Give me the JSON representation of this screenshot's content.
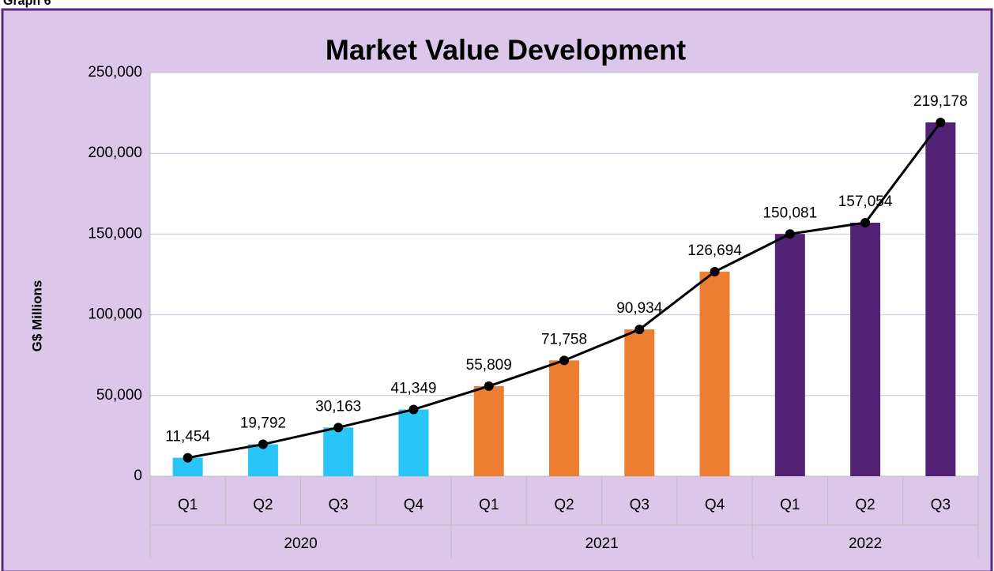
{
  "caption": "Graph 6",
  "chart_data": {
    "type": "bar-line",
    "title": "Market Value Development",
    "ylabel": "G$ Millions",
    "groups": [
      {
        "name": "2020",
        "color": "#29c5f6",
        "categories": [
          "Q1",
          "Q2",
          "Q3",
          "Q4"
        ],
        "values": [
          11454,
          19792,
          30163,
          41349
        ],
        "value_labels": [
          "11,454",
          "19,792",
          "30,163",
          "41,349"
        ]
      },
      {
        "name": "2021",
        "color": "#ed7d31",
        "categories": [
          "Q1",
          "Q2",
          "Q3",
          "Q4"
        ],
        "values": [
          55809,
          71758,
          90934,
          126694
        ],
        "value_labels": [
          "55,809",
          "71,758",
          "90,934",
          "126,694"
        ]
      },
      {
        "name": "2022",
        "color": "#522274",
        "categories": [
          "Q1",
          "Q2",
          "Q3"
        ],
        "values": [
          150081,
          157054,
          219178
        ],
        "value_labels": [
          "150,081",
          "157,054",
          "219,178"
        ]
      }
    ],
    "line_color": "#000000",
    "ylim": [
      0,
      250000
    ],
    "yticks": [
      0,
      {
        "value": 50000,
        "label": "50,000"
      },
      {
        "value": 100000,
        "label": "100,000"
      },
      {
        "value": 150000,
        "label": "150,000"
      },
      {
        "value": 200000,
        "label": "200,000"
      },
      {
        "value": 250000,
        "label": "250,000"
      }
    ],
    "grid": true
  }
}
